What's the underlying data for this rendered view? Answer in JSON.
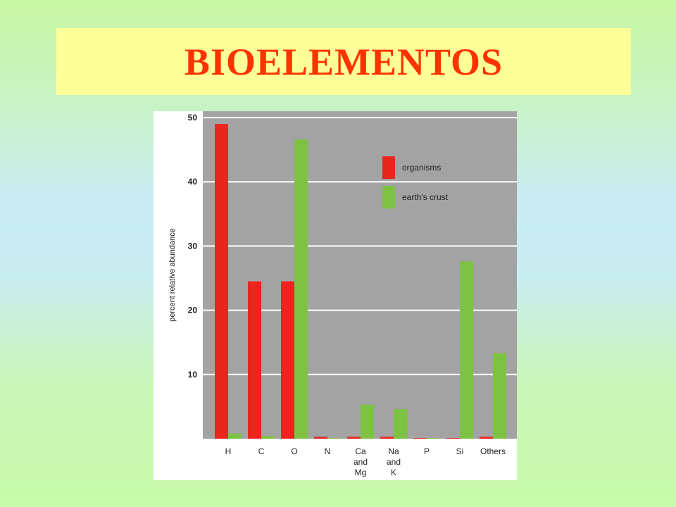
{
  "slide": {
    "title": "BIOELEMENTOS"
  },
  "colors": {
    "organisms": "#e8261e",
    "earths_crust": "#7dc242",
    "plot_bg": "#a3a3a3",
    "title_text": "#ff3300",
    "title_box": "#ffff99"
  },
  "chart_data": {
    "type": "bar",
    "ylabel": "percent relative abundance",
    "xlabel": "",
    "ylim": [
      0,
      50
    ],
    "yticks": [
      10,
      20,
      30,
      40,
      50
    ],
    "grid": true,
    "legend_position": "top-right",
    "categories": [
      [
        "H"
      ],
      [
        "C"
      ],
      [
        "O"
      ],
      [
        "N"
      ],
      [
        "Ca",
        "and",
        "Mg"
      ],
      [
        "Na",
        "and",
        "K"
      ],
      [
        "P"
      ],
      [
        "Si"
      ],
      [
        "Others"
      ]
    ],
    "series": [
      {
        "name": "organisms",
        "color": "#e8261e",
        "values": [
          49,
          24.5,
          24.5,
          0.3,
          0.3,
          0.3,
          0.1,
          0.1,
          0.3
        ]
      },
      {
        "name": "earth's crust",
        "color": "#7dc242",
        "values": [
          0.8,
          0.4,
          46.6,
          0.1,
          5.3,
          4.6,
          0.1,
          27.6,
          13.3
        ]
      }
    ]
  }
}
